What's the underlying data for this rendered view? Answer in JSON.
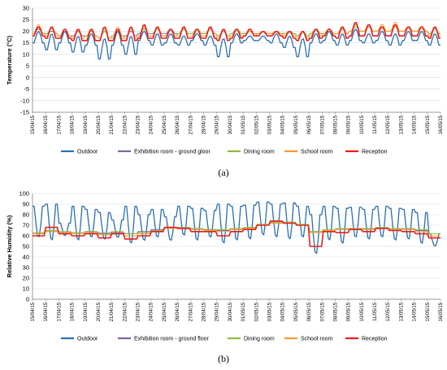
{
  "chart_data": [
    {
      "panel": "(a)",
      "type": "line",
      "ylabel": "Temperature (°C)",
      "ylim": [
        -15,
        30
      ],
      "yticks": [
        -15,
        -10,
        -5,
        0,
        5,
        10,
        15,
        20,
        25,
        30
      ],
      "grid": true,
      "legend": "bottom",
      "categories": [
        "15/04/15",
        "16/04/15",
        "17/04/15",
        "18/04/15",
        "19/04/15",
        "20/04/15",
        "21/04/15",
        "22/04/15",
        "23/04/15",
        "24/04/15",
        "25/04/15",
        "26/04/15",
        "27/04/15",
        "28/04/15",
        "29/04/15",
        "30/04/15",
        "01/05/15",
        "02/05/15",
        "03/05/15",
        "04/05/15",
        "05/05/15",
        "06/05/15",
        "07/05/15",
        "08/05/15",
        "09/05/15",
        "10/05/15",
        "11/05/15",
        "12/05/15",
        "13/05/15",
        "14/05/15",
        "15/05/15",
        "16/05/15"
      ],
      "series": [
        {
          "name": "Outdoor",
          "color": "#2a6fb0",
          "values": [
            15,
            12,
            15,
            11,
            14,
            8,
            14,
            10,
            16,
            14,
            15,
            14,
            16,
            14,
            9,
            15,
            16,
            16,
            15,
            13,
            9,
            15,
            16,
            14,
            16,
            15,
            16,
            14,
            16,
            16,
            14,
            16
          ],
          "daily_max": [
            20,
            19,
            20,
            18,
            19,
            17,
            20,
            18,
            20,
            19,
            19,
            18,
            19,
            18,
            17,
            19,
            18,
            18,
            19,
            18,
            17,
            19,
            20,
            19,
            21,
            19,
            20,
            19,
            20,
            20,
            19,
            17
          ]
        },
        {
          "name": "Exhibition room - ground gloor",
          "color": "#8064a2",
          "values": [
            19,
            19,
            18,
            18,
            18,
            17,
            18,
            18,
            19,
            19,
            19,
            19,
            19,
            19,
            18,
            19,
            19,
            19,
            19,
            19,
            18,
            19,
            19,
            19,
            20,
            20,
            20,
            20,
            20,
            20,
            19,
            19
          ],
          "daily_max": [
            21,
            20,
            20,
            20,
            20,
            20,
            20,
            20,
            21,
            21,
            21,
            21,
            21,
            21,
            20,
            21,
            20,
            20,
            20,
            20,
            20,
            21,
            21,
            21,
            22,
            22,
            22,
            22,
            22,
            22,
            21,
            20
          ]
        },
        {
          "name": "Dining room",
          "color": "#8fbc3a",
          "values": [
            19,
            19,
            18,
            17,
            18,
            17,
            18,
            17,
            18,
            18,
            18,
            19,
            19,
            19,
            18,
            19,
            19,
            19,
            19,
            19,
            18,
            19,
            19,
            19,
            20,
            20,
            20,
            20,
            20,
            20,
            19,
            19
          ],
          "daily_max": [
            22,
            21,
            21,
            20,
            20,
            20,
            21,
            21,
            21,
            21,
            21,
            21,
            21,
            21,
            20,
            21,
            20,
            20,
            20,
            20,
            20,
            21,
            21,
            21,
            22,
            22,
            22,
            22,
            22,
            22,
            21,
            20
          ]
        },
        {
          "name": "School room",
          "color": "#f39c2e",
          "values": [
            19,
            18,
            18,
            17,
            18,
            17,
            17,
            17,
            18,
            18,
            18,
            18,
            18,
            18,
            17,
            18,
            18,
            19,
            19,
            18,
            17,
            18,
            19,
            19,
            20,
            20,
            20,
            20,
            20,
            20,
            18,
            18
          ],
          "daily_max": [
            23,
            22,
            21,
            21,
            21,
            21,
            22,
            22,
            22,
            22,
            21,
            21,
            21,
            21,
            21,
            21,
            20,
            20,
            20,
            20,
            20,
            21,
            21,
            22,
            23,
            23,
            23,
            24,
            22,
            22,
            22,
            21
          ]
        },
        {
          "name": "Reception",
          "color": "#ee1c1c",
          "values": [
            18,
            17,
            17,
            16,
            16,
            16,
            16,
            16,
            17,
            17,
            17,
            17,
            17,
            17,
            16,
            17,
            18,
            18,
            18,
            17,
            16,
            17,
            18,
            17,
            18,
            18,
            18,
            18,
            18,
            18,
            17,
            17
          ],
          "daily_max": [
            22,
            22,
            21,
            21,
            21,
            22,
            21,
            22,
            23,
            22,
            21,
            22,
            21,
            22,
            21,
            21,
            21,
            20,
            20,
            20,
            20,
            21,
            21,
            22,
            24,
            23,
            22,
            23,
            22,
            22,
            22,
            21
          ]
        }
      ]
    },
    {
      "panel": "(b)",
      "type": "line",
      "ylabel": "Relative Humidity (%)",
      "ylim": [
        0,
        100
      ],
      "yticks": [
        0,
        10,
        20,
        30,
        40,
        50,
        60,
        70,
        80,
        90,
        100
      ],
      "grid": true,
      "legend": "bottom",
      "categories": [
        "15/04/15",
        "16/04/15",
        "17/04/15",
        "18/04/15",
        "19/04/15",
        "20/04/15",
        "21/04/15",
        "22/04/15",
        "23/04/15",
        "24/04/15",
        "25/04/15",
        "26/04/15",
        "27/04/15",
        "28/04/15",
        "29/04/15",
        "30/04/15",
        "01/05/15",
        "02/05/15",
        "03/05/15",
        "04/05/15",
        "05/05/15",
        "06/05/15",
        "07/05/15",
        "08/05/15",
        "09/05/15",
        "10/05/15",
        "11/05/15",
        "12/05/15",
        "13/05/15",
        "14/05/15",
        "15/05/15",
        "16/05/15"
      ],
      "series": [
        {
          "name": "Outdoor",
          "color": "#2a6fb0",
          "values": [
            88,
            90,
            72,
            88,
            85,
            82,
            75,
            88,
            80,
            85,
            78,
            88,
            86,
            84,
            90,
            88,
            89,
            92,
            90,
            91,
            88,
            80,
            88,
            86,
            87,
            85,
            88,
            86,
            85,
            82,
            62,
            78
          ],
          "daily_min": [
            58,
            55,
            60,
            55,
            58,
            56,
            58,
            52,
            55,
            58,
            55,
            60,
            55,
            58,
            52,
            55,
            56,
            60,
            58,
            56,
            58,
            42,
            55,
            52,
            58,
            56,
            58,
            55,
            56,
            52,
            50,
            55
          ]
        },
        {
          "name": "Exhibition room - ground floor",
          "color": "#8064a2",
          "values": [
            62,
            64,
            63,
            63,
            64,
            62,
            63,
            62,
            64,
            66,
            68,
            68,
            66,
            66,
            65,
            66,
            68,
            70,
            72,
            72,
            70,
            64,
            65,
            66,
            66,
            66,
            67,
            66,
            66,
            65,
            60,
            62
          ]
        },
        {
          "name": "Dining room",
          "color": "#8fbc3a",
          "values": [
            63,
            65,
            64,
            63,
            64,
            63,
            64,
            62,
            63,
            65,
            68,
            68,
            67,
            66,
            66,
            67,
            68,
            71,
            73,
            73,
            71,
            64,
            66,
            67,
            67,
            67,
            68,
            67,
            67,
            66,
            62,
            63
          ]
        },
        {
          "name": "School room",
          "color": "#f39c2e",
          "values": [
            62,
            64,
            63,
            62,
            63,
            61,
            62,
            60,
            62,
            64,
            67,
            67,
            66,
            65,
            64,
            66,
            67,
            70,
            72,
            72,
            70,
            63,
            65,
            66,
            66,
            66,
            67,
            66,
            66,
            64,
            60,
            62
          ]
        },
        {
          "name": "Reception",
          "color": "#ee1c1c",
          "values": [
            60,
            68,
            62,
            60,
            62,
            58,
            62,
            57,
            60,
            64,
            68,
            67,
            64,
            64,
            60,
            64,
            66,
            70,
            74,
            72,
            70,
            50,
            64,
            63,
            66,
            64,
            67,
            65,
            64,
            62,
            58,
            64
          ]
        }
      ]
    }
  ],
  "labels": {
    "panel_a": "(a)",
    "panel_b": "(b)"
  }
}
